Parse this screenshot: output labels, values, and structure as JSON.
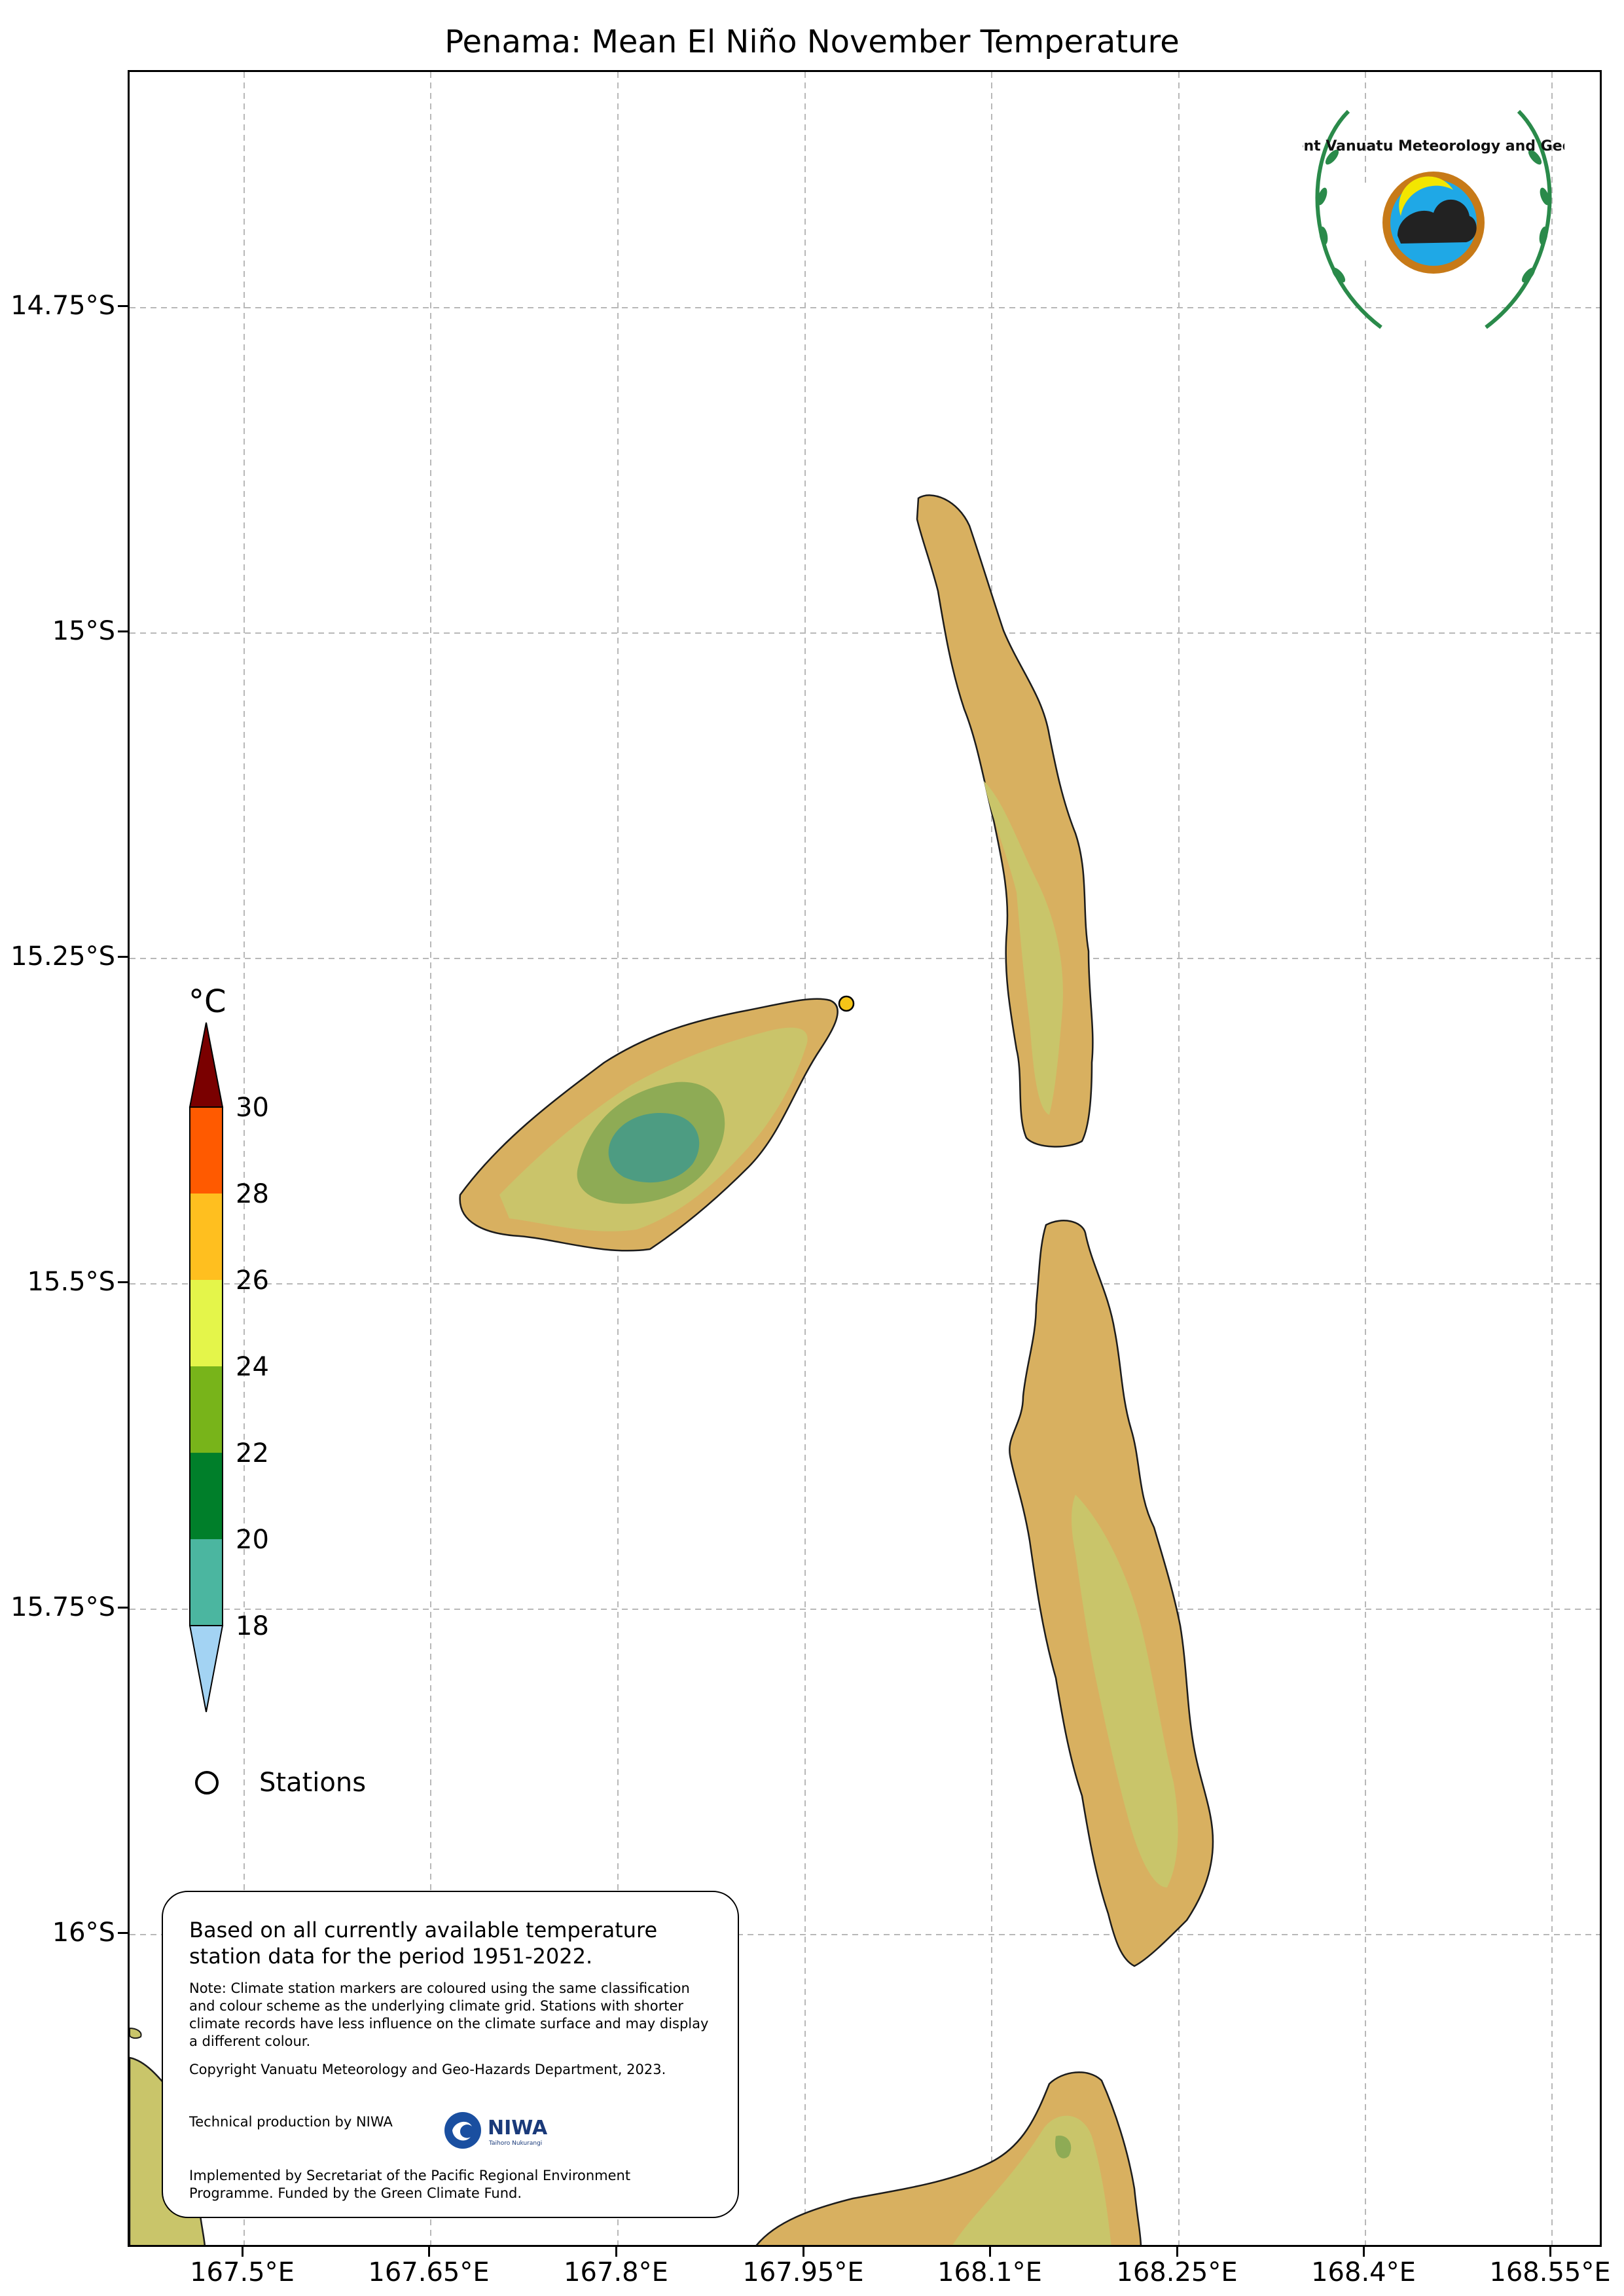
{
  "title": "Penama: Mean El Niño November Temperature",
  "map": {
    "lat_ticks": [
      {
        "label": "14.75°S",
        "value": -14.75
      },
      {
        "label": "15°S",
        "value": -15.0
      },
      {
        "label": "15.25°S",
        "value": -15.25
      },
      {
        "label": "15.5°S",
        "value": -15.5
      },
      {
        "label": "15.75°S",
        "value": -15.75
      },
      {
        "label": "16°S",
        "value": -16.0
      }
    ],
    "lon_ticks": [
      {
        "label": "167.5°E",
        "value": 167.5
      },
      {
        "label": "167.65°E",
        "value": 167.65
      },
      {
        "label": "167.8°E",
        "value": 167.8
      },
      {
        "label": "167.95°E",
        "value": 167.95
      },
      {
        "label": "168.1°E",
        "value": 168.1
      },
      {
        "label": "168.25°E",
        "value": 168.25
      },
      {
        "label": "168.4°E",
        "value": 168.4
      },
      {
        "label": "168.55°E",
        "value": 168.55
      }
    ],
    "grid": "dashed",
    "ocean_color": "#ffffff",
    "station_color": "#f5c518"
  },
  "colorbar": {
    "unit": "°C",
    "labels": [
      "30",
      "28",
      "26",
      "24",
      "22",
      "20",
      "18"
    ],
    "bands": [
      {
        "range": "above 30",
        "color": "#7a0000"
      },
      {
        "range": "28-30",
        "color": "#ff5a00"
      },
      {
        "range": "26-28",
        "color": "#ffbf1f"
      },
      {
        "range": "24-26",
        "color": "#e4f54a"
      },
      {
        "range": "22-24",
        "color": "#78b41a"
      },
      {
        "range": "20-22",
        "color": "#007f2a"
      },
      {
        "range": "18-20",
        "color": "#4bb6a0"
      },
      {
        "range": "below 18",
        "color": "#a3d3f3"
      }
    ]
  },
  "legend": {
    "stations_label": "Stations"
  },
  "info": {
    "main": "Based on all currently available temperature station data for the period 1951-2022.",
    "note": "Note: Climate station markers are coloured using the same classification and colour scheme as the underlying climate grid. Stations with shorter climate records have less influence on the climate surface and may display a different colour.",
    "copyright": "Copyright Vanuatu Meteorology and Geo-Hazards Department, 2023.",
    "technical": "Technical production by NIWA",
    "implemented": "Implemented by Secretariat of the Pacific Regional Environment Programme. Funded by the Green Climate Fund."
  },
  "logos": {
    "department_text": "Department Vanuatu Meteorology and Geo-Hazards",
    "niwa_text": "NIWA",
    "niwa_tagline": "Taihoro Nukurangi"
  }
}
